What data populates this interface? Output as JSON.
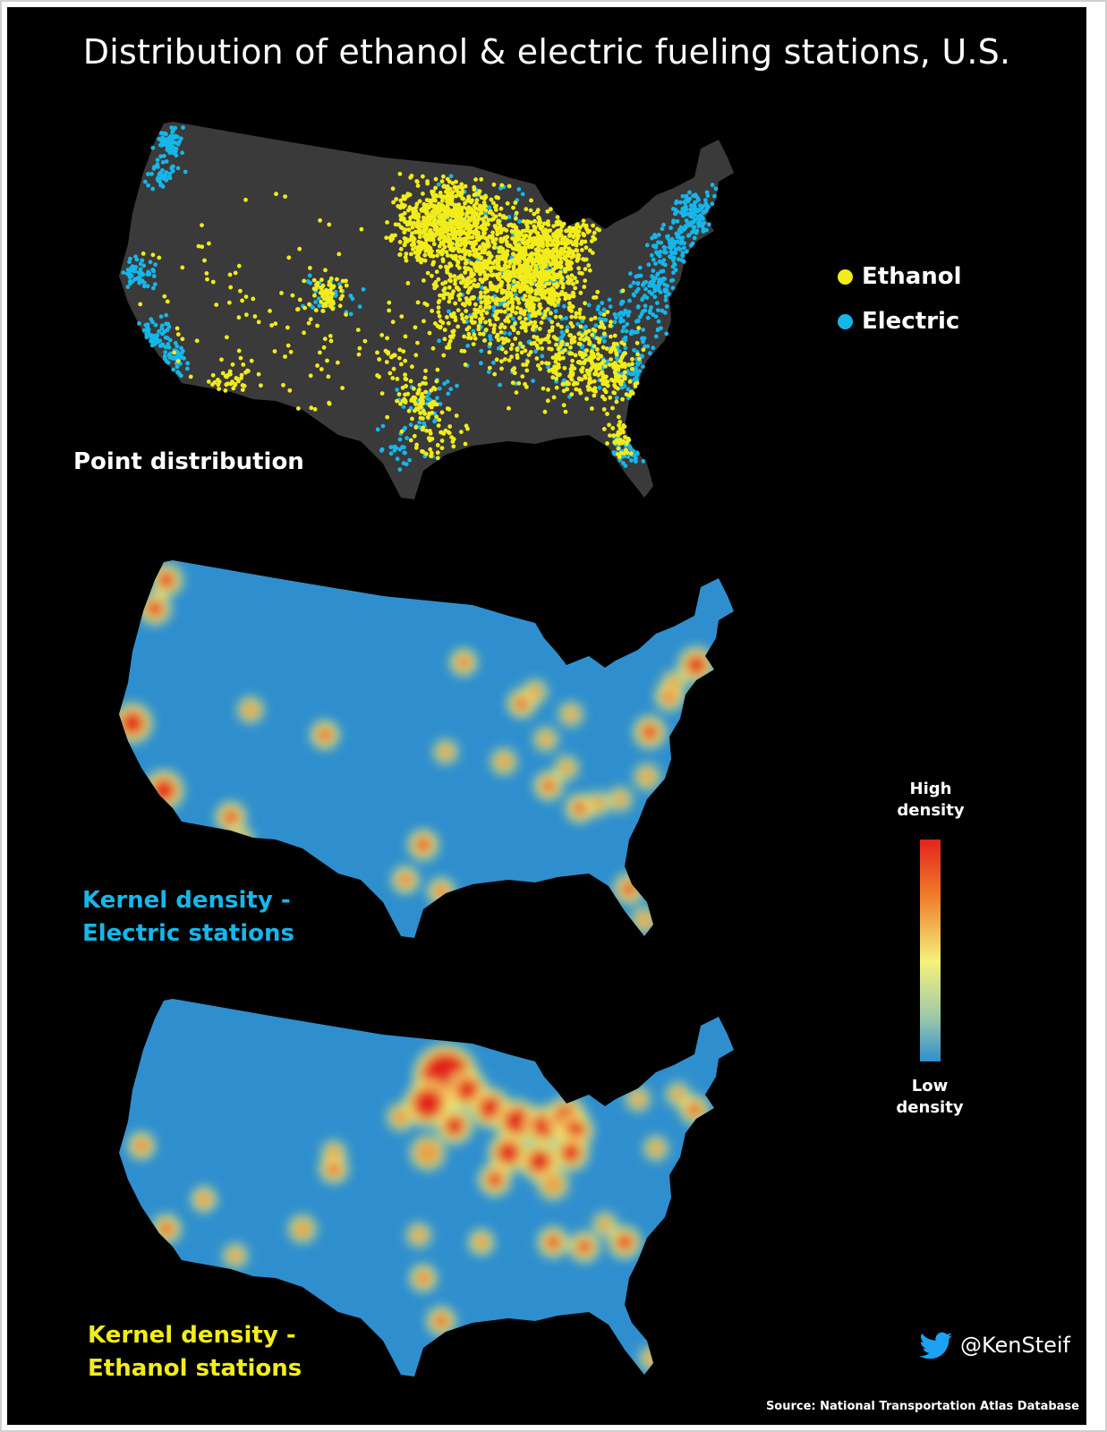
{
  "title": "Distribution of ethanol & electric fueling stations, U.S.",
  "colors": {
    "background": "#000000",
    "land": "#3a3a3a",
    "ethanol": "#f2ec1a",
    "electric": "#16b6ea",
    "density_low": "#2f8fce",
    "density_mid": "#f4f27a",
    "density_high": "#e3241e"
  },
  "legend": {
    "ethanol_label": "Ethanol",
    "electric_label": "Electric"
  },
  "maps": {
    "point": {
      "label": "Point distribution"
    },
    "electric_density": {
      "label": "Kernel density -\nElectric stations"
    },
    "ethanol_density": {
      "label": "Kernel density -\nEthanol stations"
    }
  },
  "density_scale": {
    "high_label": "High\ndensity",
    "low_label": "Low\ndensity"
  },
  "credit": {
    "handle": "@KenSteif",
    "icon": "twitter-bird-icon",
    "source": "Source: National Transportation Atlas Database"
  }
}
